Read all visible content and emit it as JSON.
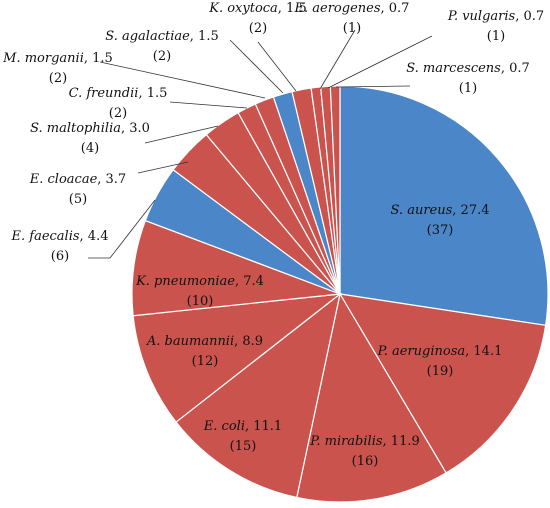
{
  "chart_data": {
    "type": "pie",
    "start_angle_deg": 0,
    "direction": "clockwise",
    "colors": {
      "blue": "#4a86c8",
      "red": "#cb534d",
      "edge": "#ffffff",
      "leader": "#333333"
    },
    "slices": [
      {
        "species": "S. aureus",
        "percent": "27.4",
        "count": "(37)",
        "value": 37,
        "color": "blue",
        "label_inside": true
      },
      {
        "species": "P. aeruginosa",
        "percent": "14.1",
        "count": "(19)",
        "value": 19,
        "color": "red",
        "label_inside": true
      },
      {
        "species": "P. mirabilis",
        "percent": "11.9",
        "count": "(16)",
        "value": 16,
        "color": "red",
        "label_inside": true
      },
      {
        "species": "E. coli",
        "percent": "11.1",
        "count": "(15)",
        "value": 15,
        "color": "red",
        "label_inside": true
      },
      {
        "species": "A. baumannii",
        "percent": "8.9",
        "count": "(12)",
        "value": 12,
        "color": "red",
        "label_inside": true
      },
      {
        "species": "K. pneumoniae",
        "percent": "7.4",
        "count": "(10)",
        "value": 10,
        "color": "red",
        "label_inside": true
      },
      {
        "species": "E. faecalis",
        "percent": "4.4",
        "count": "(6)",
        "value": 6,
        "color": "blue",
        "label_inside": false
      },
      {
        "species": "E. cloacae",
        "percent": "3.7",
        "count": "(5)",
        "value": 5,
        "color": "red",
        "label_inside": false
      },
      {
        "species": "S. maltophilia",
        "percent": "3.0",
        "count": "(4)",
        "value": 4,
        "color": "red",
        "label_inside": false
      },
      {
        "species": "C. freundii",
        "percent": "1.5",
        "count": "(2)",
        "value": 2,
        "color": "red",
        "label_inside": false
      },
      {
        "species": "M. morganii",
        "percent": "1.5",
        "count": "(2)",
        "value": 2,
        "color": "red",
        "label_inside": false
      },
      {
        "species": "S. agalactiae",
        "percent": "1.5",
        "count": "(2)",
        "value": 2,
        "color": "blue",
        "label_inside": false
      },
      {
        "species": "K. oxytoca",
        "percent": "1.5",
        "count": "(2)",
        "value": 2,
        "color": "red",
        "label_inside": false
      },
      {
        "species": "E. aerogenes",
        "percent": "0.7",
        "count": "(1)",
        "value": 1,
        "color": "red",
        "label_inside": false
      },
      {
        "species": "P. vulgaris",
        "percent": "0.7",
        "count": "(1)",
        "value": 1,
        "color": "red",
        "label_inside": false
      },
      {
        "species": "S. marcescens",
        "percent": "0.7",
        "count": "(1)",
        "value": 1,
        "color": "red",
        "label_inside": false
      }
    ]
  }
}
